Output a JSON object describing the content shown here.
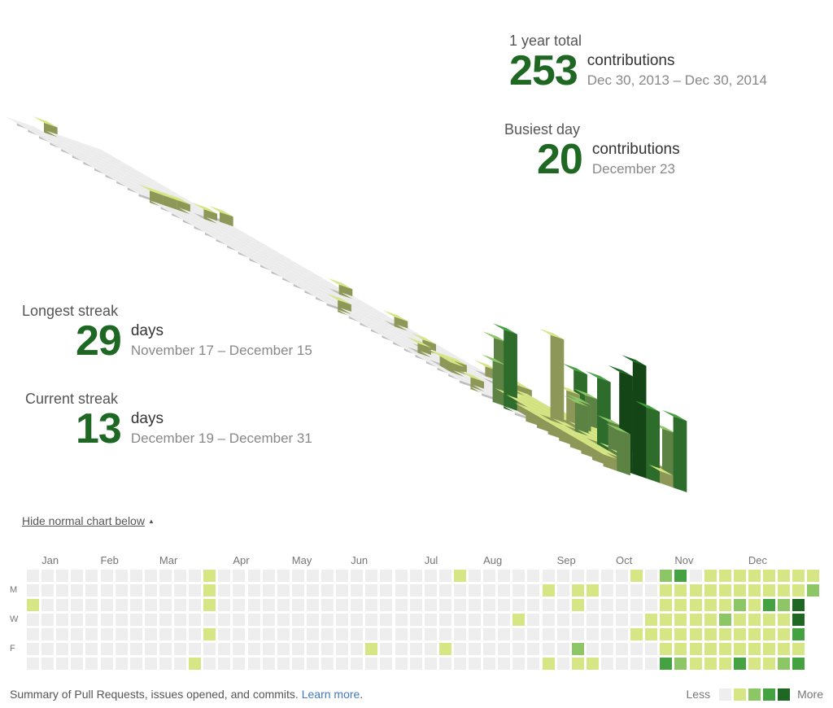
{
  "stats": {
    "total": {
      "label": "1 year total",
      "value": "253",
      "unit": "contributions",
      "range": "Dec 30, 2013 – Dec 30, 2014"
    },
    "busiest": {
      "label": "Busiest day",
      "value": "20",
      "unit": "contributions",
      "range": "December 23"
    },
    "longest": {
      "label": "Longest streak",
      "value": "29",
      "unit": "days",
      "range": "November 17 – December 15"
    },
    "current": {
      "label": "Current streak",
      "value": "13",
      "unit": "days",
      "range": "December 19 – December 31"
    }
  },
  "toggle": {
    "label": "Hide normal chart below",
    "arrow": "▲"
  },
  "calendar": {
    "months": [
      {
        "label": "Jan",
        "week": 1
      },
      {
        "label": "Feb",
        "week": 5
      },
      {
        "label": "Mar",
        "week": 9
      },
      {
        "label": "Apr",
        "week": 14
      },
      {
        "label": "May",
        "week": 18
      },
      {
        "label": "Jun",
        "week": 22
      },
      {
        "label": "Jul",
        "week": 27
      },
      {
        "label": "Aug",
        "week": 31
      },
      {
        "label": "Sep",
        "week": 36
      },
      {
        "label": "Oct",
        "week": 40
      },
      {
        "label": "Nov",
        "week": 44
      },
      {
        "label": "Dec",
        "week": 49
      }
    ],
    "day_labels": [
      {
        "label": "M",
        "day": 1
      },
      {
        "label": "W",
        "day": 3
      },
      {
        "label": "F",
        "day": 5
      }
    ],
    "weeks": 53,
    "levels": [
      {
        "week": 0,
        "day": 2,
        "level": 1
      },
      {
        "week": 12,
        "day": 0,
        "level": 1
      },
      {
        "week": 12,
        "day": 1,
        "level": 1
      },
      {
        "week": 12,
        "day": 2,
        "level": 1
      },
      {
        "week": 12,
        "day": 4,
        "level": 1
      },
      {
        "week": 11,
        "day": 6,
        "level": 1
      },
      {
        "week": 23,
        "day": 5,
        "level": 1
      },
      {
        "week": 28,
        "day": 5,
        "level": 1
      },
      {
        "week": 29,
        "day": 0,
        "level": 1
      },
      {
        "week": 33,
        "day": 3,
        "level": 1
      },
      {
        "week": 35,
        "day": 1,
        "level": 1
      },
      {
        "week": 35,
        "day": 6,
        "level": 1
      },
      {
        "week": 37,
        "day": 1,
        "level": 1
      },
      {
        "week": 37,
        "day": 2,
        "level": 1
      },
      {
        "week": 37,
        "day": 5,
        "level": 2
      },
      {
        "week": 37,
        "day": 6,
        "level": 1
      },
      {
        "week": 38,
        "day": 1,
        "level": 1
      },
      {
        "week": 38,
        "day": 6,
        "level": 1
      },
      {
        "week": 41,
        "day": 0,
        "level": 1
      },
      {
        "week": 41,
        "day": 4,
        "level": 1
      },
      {
        "week": 42,
        "day": 3,
        "level": 1
      },
      {
        "week": 42,
        "day": 4,
        "level": 1
      },
      {
        "week": 43,
        "day": 0,
        "level": 2
      },
      {
        "week": 43,
        "day": 1,
        "level": 1
      },
      {
        "week": 43,
        "day": 2,
        "level": 1
      },
      {
        "week": 43,
        "day": 3,
        "level": 1
      },
      {
        "week": 43,
        "day": 4,
        "level": 1
      },
      {
        "week": 43,
        "day": 5,
        "level": 1
      },
      {
        "week": 43,
        "day": 6,
        "level": 3
      },
      {
        "week": 44,
        "day": 0,
        "level": 3
      },
      {
        "week": 44,
        "day": 1,
        "level": 1
      },
      {
        "week": 44,
        "day": 2,
        "level": 1
      },
      {
        "week": 44,
        "day": 3,
        "level": 1
      },
      {
        "week": 44,
        "day": 4,
        "level": 1
      },
      {
        "week": 44,
        "day": 5,
        "level": 1
      },
      {
        "week": 44,
        "day": 6,
        "level": 2
      },
      {
        "week": 45,
        "day": 1,
        "level": 1
      },
      {
        "week": 45,
        "day": 2,
        "level": 1
      },
      {
        "week": 45,
        "day": 3,
        "level": 1
      },
      {
        "week": 45,
        "day": 4,
        "level": 1
      },
      {
        "week": 45,
        "day": 5,
        "level": 1
      },
      {
        "week": 45,
        "day": 6,
        "level": 1
      },
      {
        "week": 46,
        "day": 0,
        "level": 1
      },
      {
        "week": 46,
        "day": 1,
        "level": 1
      },
      {
        "week": 46,
        "day": 2,
        "level": 1
      },
      {
        "week": 46,
        "day": 3,
        "level": 1
      },
      {
        "week": 46,
        "day": 4,
        "level": 1
      },
      {
        "week": 46,
        "day": 5,
        "level": 1
      },
      {
        "week": 46,
        "day": 6,
        "level": 1
      },
      {
        "week": 47,
        "day": 0,
        "level": 1
      },
      {
        "week": 47,
        "day": 1,
        "level": 1
      },
      {
        "week": 47,
        "day": 2,
        "level": 1
      },
      {
        "week": 47,
        "day": 3,
        "level": 2
      },
      {
        "week": 47,
        "day": 4,
        "level": 1
      },
      {
        "week": 47,
        "day": 5,
        "level": 1
      },
      {
        "week": 47,
        "day": 6,
        "level": 1
      },
      {
        "week": 48,
        "day": 0,
        "level": 1
      },
      {
        "week": 48,
        "day": 1,
        "level": 1
      },
      {
        "week": 48,
        "day": 2,
        "level": 2
      },
      {
        "week": 48,
        "day": 3,
        "level": 1
      },
      {
        "week": 48,
        "day": 4,
        "level": 1
      },
      {
        "week": 48,
        "day": 5,
        "level": 1
      },
      {
        "week": 48,
        "day": 6,
        "level": 3
      },
      {
        "week": 49,
        "day": 0,
        "level": 1
      },
      {
        "week": 49,
        "day": 1,
        "level": 1
      },
      {
        "week": 49,
        "day": 2,
        "level": 1
      },
      {
        "week": 49,
        "day": 3,
        "level": 1
      },
      {
        "week": 49,
        "day": 4,
        "level": 1
      },
      {
        "week": 49,
        "day": 5,
        "level": 1
      },
      {
        "week": 49,
        "day": 6,
        "level": 1
      },
      {
        "week": 50,
        "day": 0,
        "level": 1
      },
      {
        "week": 50,
        "day": 1,
        "level": 1
      },
      {
        "week": 50,
        "day": 2,
        "level": 3
      },
      {
        "week": 50,
        "day": 3,
        "level": 1
      },
      {
        "week": 50,
        "day": 4,
        "level": 1
      },
      {
        "week": 50,
        "day": 5,
        "level": 1
      },
      {
        "week": 50,
        "day": 6,
        "level": 1
      },
      {
        "week": 51,
        "day": 0,
        "level": 1
      },
      {
        "week": 51,
        "day": 1,
        "level": 1
      },
      {
        "week": 51,
        "day": 2,
        "level": 2
      },
      {
        "week": 51,
        "day": 3,
        "level": 1
      },
      {
        "week": 51,
        "day": 4,
        "level": 1
      },
      {
        "week": 51,
        "day": 5,
        "level": 1
      },
      {
        "week": 51,
        "day": 6,
        "level": 2
      },
      {
        "week": 52,
        "day": 0,
        "level": 1
      },
      {
        "week": 52,
        "day": 1,
        "level": 1
      },
      {
        "week": 52,
        "day": 2,
        "level": 4
      },
      {
        "week": 52,
        "day": 3,
        "level": 4
      },
      {
        "week": 52,
        "day": 4,
        "level": 3
      },
      {
        "week": 52,
        "day": 5,
        "level": 1
      },
      {
        "week": 52,
        "day": 6,
        "level": 3
      },
      {
        "week": 53,
        "day": 0,
        "level": 1
      },
      {
        "week": 53,
        "day": 1,
        "level": 2
      }
    ]
  },
  "colors": {
    "level0": "#eeeeee",
    "level1": "#d6e685",
    "level2": "#8cc665",
    "level3": "#44a340",
    "level4": "#1e6823",
    "accent": "#1e6823",
    "link": "#4078c0"
  },
  "footer": {
    "note": "Summary of Pull Requests, issues opened, and commits.",
    "link": "Learn more",
    "period": "."
  },
  "legend": {
    "less": "Less",
    "more": "More"
  }
}
